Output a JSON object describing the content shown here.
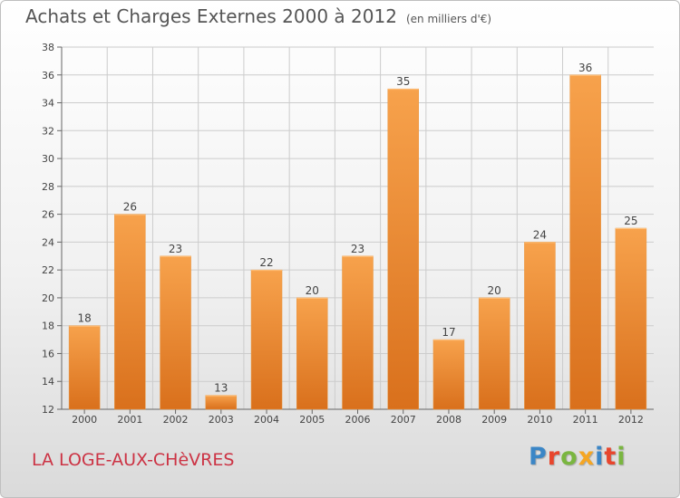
{
  "header": {
    "title": "Achats et Charges Externes 2000 à 2012",
    "subtitle": "(en milliers d'€)"
  },
  "footer": {
    "commune": "LA LOGE-AUX-CHèVRES",
    "logo_text": "Proxiti"
  },
  "colors": {
    "bar_top": "#f7a24c",
    "bar_bottom": "#d9701c",
    "grid": "#cccccc",
    "commune": "#cc3344",
    "logo_letters": [
      "#3b86c6",
      "#e8462d",
      "#7ab640",
      "#f5a623",
      "#3b86c6",
      "#e8462d",
      "#7ab640"
    ]
  },
  "chart_data": {
    "type": "bar",
    "categories": [
      "2000",
      "2001",
      "2002",
      "2003",
      "2004",
      "2005",
      "2006",
      "2007",
      "2008",
      "2009",
      "2010",
      "2011",
      "2012"
    ],
    "values": [
      18,
      26,
      23,
      13,
      22,
      20,
      23,
      35,
      17,
      20,
      24,
      36,
      25
    ],
    "title": "Achats et Charges Externes 2000 à 2012",
    "ylim": [
      12,
      38
    ],
    "yticks": [
      12,
      14,
      16,
      18,
      20,
      22,
      24,
      26,
      28,
      30,
      32,
      34,
      36,
      38
    ],
    "grid": true,
    "data_labels": true
  }
}
